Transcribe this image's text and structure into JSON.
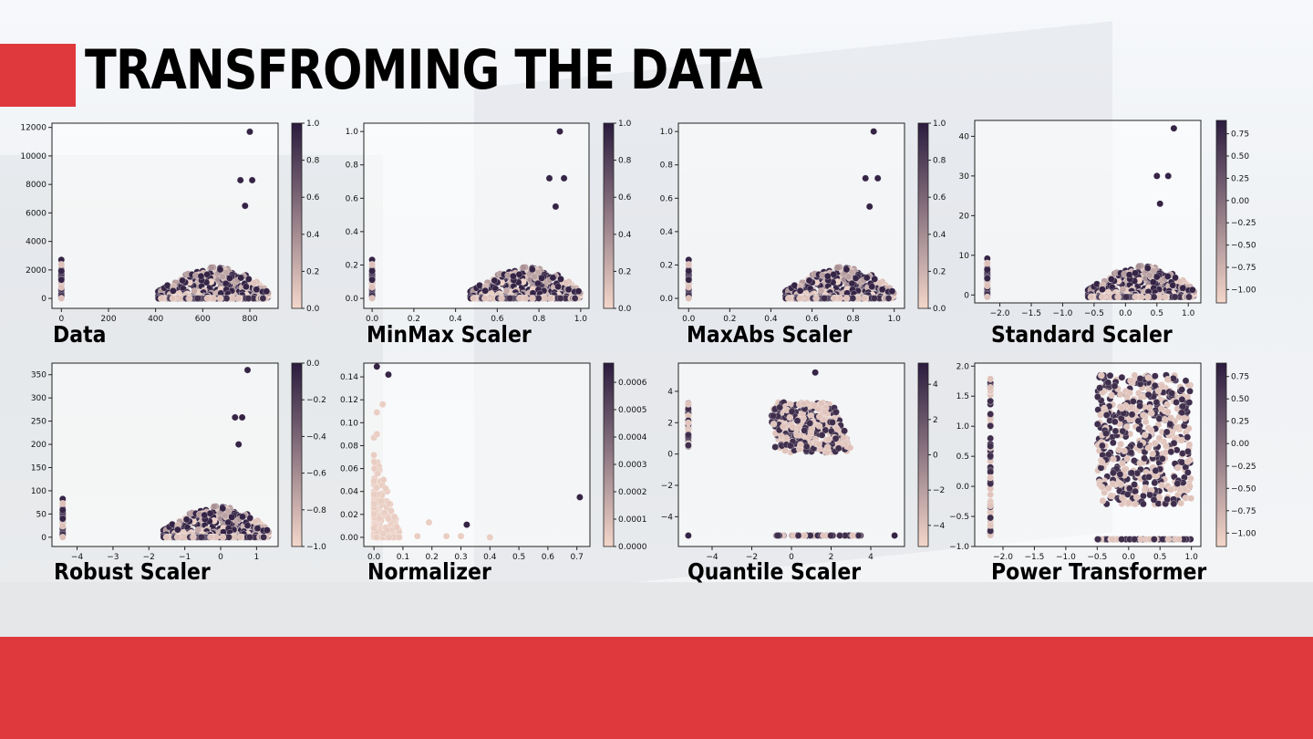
{
  "slide": {
    "title": "TRANSFROMING THE DATA"
  },
  "colors": {
    "accent": "#df393d",
    "band": "#e6e7e9",
    "cmap_low": "#f4d7ca",
    "cmap_high": "#2b1b3e"
  },
  "chart_data": [
    {
      "type": "scatter",
      "label": "Data",
      "xlim": [
        -40,
        920
      ],
      "ylim": [
        -700,
        12300
      ],
      "xticks": [
        0,
        200,
        400,
        600,
        800
      ],
      "yticks": [
        0,
        2000,
        4000,
        6000,
        8000,
        10000,
        12000
      ],
      "xtick_labels": [
        "0",
        "200",
        "400",
        "600",
        "800"
      ],
      "ytick_labels": [
        "0",
        "2000",
        "4000",
        "6000",
        "8000",
        "10000",
        "12000"
      ],
      "colorbar": {
        "min": 0.0,
        "max": 1.0,
        "ticks": [
          0.0,
          0.2,
          0.4,
          0.6,
          0.8,
          1.0
        ],
        "labels": [
          "0.0",
          "0.2",
          "0.4",
          "0.6",
          "0.8",
          "1.0"
        ]
      },
      "shape": "standard",
      "highlights": [
        [
          800,
          11700
        ],
        [
          760,
          8300
        ],
        [
          810,
          8300
        ],
        [
          780,
          6500
        ]
      ]
    },
    {
      "type": "scatter",
      "label": "MinMax Scaler",
      "xlim": [
        -0.04,
        1.04
      ],
      "ylim": [
        -0.06,
        1.05
      ],
      "xticks": [
        0,
        0.2,
        0.4,
        0.6,
        0.8,
        1.0
      ],
      "yticks": [
        0,
        0.2,
        0.4,
        0.6,
        0.8,
        1.0
      ],
      "xtick_labels": [
        "0.0",
        "0.2",
        "0.4",
        "0.6",
        "0.8",
        "1.0"
      ],
      "ytick_labels": [
        "0.0",
        "0.2",
        "0.4",
        "0.6",
        "0.8",
        "1.0"
      ],
      "colorbar": {
        "min": 0.0,
        "max": 1.0,
        "ticks": [
          0.0,
          0.2,
          0.4,
          0.6,
          0.8,
          1.0
        ],
        "labels": [
          "0.0",
          "0.2",
          "0.4",
          "0.6",
          "0.8",
          "1.0"
        ]
      },
      "shape": "standard",
      "highlights": [
        [
          0.9,
          1.0
        ],
        [
          0.85,
          0.72
        ],
        [
          0.92,
          0.72
        ],
        [
          0.88,
          0.55
        ]
      ]
    },
    {
      "type": "scatter",
      "label": "MaxAbs Scaler",
      "xlim": [
        -0.05,
        1.05
      ],
      "ylim": [
        -0.06,
        1.05
      ],
      "xticks": [
        0,
        0.2,
        0.4,
        0.6,
        0.8,
        1.0
      ],
      "yticks": [
        0,
        0.2,
        0.4,
        0.6,
        0.8,
        1.0
      ],
      "xtick_labels": [
        "0.0",
        "0.2",
        "0.4",
        "0.6",
        "0.8",
        "1.0"
      ],
      "ytick_labels": [
        "0.0",
        "0.2",
        "0.4",
        "0.6",
        "0.8",
        "1.0"
      ],
      "colorbar": {
        "min": 0.0,
        "max": 1.0,
        "ticks": [
          0.0,
          0.2,
          0.4,
          0.6,
          0.8,
          1.0
        ],
        "labels": [
          "0.0",
          "0.2",
          "0.4",
          "0.6",
          "0.8",
          "1.0"
        ]
      },
      "shape": "standard",
      "highlights": [
        [
          0.9,
          1.0
        ],
        [
          0.86,
          0.72
        ],
        [
          0.92,
          0.72
        ],
        [
          0.88,
          0.55
        ]
      ]
    },
    {
      "type": "scatter",
      "label": "Standard Scaler",
      "xlim": [
        -2.4,
        1.2
      ],
      "ylim": [
        -2,
        44
      ],
      "xticks": [
        -2.0,
        -1.5,
        -1.0,
        -0.5,
        0.0,
        0.5,
        1.0
      ],
      "yticks": [
        0,
        10,
        20,
        30,
        40
      ],
      "xtick_labels": [
        "−2.0",
        "−1.5",
        "−1.0",
        "−0.5",
        "0.0",
        "0.5",
        "1.0"
      ],
      "ytick_labels": [
        "0",
        "10",
        "20",
        "30",
        "40"
      ],
      "colorbar": {
        "min": -1.15,
        "max": 0.9,
        "ticks": [
          -1.0,
          -0.75,
          -0.5,
          -0.25,
          0.0,
          0.25,
          0.5,
          0.75
        ],
        "labels": [
          "−1.00",
          "−0.75",
          "−0.50",
          "−0.25",
          "0.00",
          "0.25",
          "0.50",
          "0.75"
        ]
      },
      "shape": "standard",
      "highlights": [
        [
          0.77,
          42
        ],
        [
          0.5,
          30
        ],
        [
          0.68,
          30
        ],
        [
          0.55,
          23
        ]
      ]
    },
    {
      "type": "scatter",
      "label": "Robust Scaler",
      "xlim": [
        -4.7,
        1.6
      ],
      "ylim": [
        -20,
        375
      ],
      "xticks": [
        -4,
        -3,
        -2,
        -1,
        0,
        1
      ],
      "yticks": [
        0,
        50,
        100,
        150,
        200,
        250,
        300,
        350
      ],
      "xtick_labels": [
        "−4",
        "−3",
        "−2",
        "−1",
        "0",
        "1"
      ],
      "ytick_labels": [
        "0",
        "50",
        "100",
        "150",
        "200",
        "250",
        "300",
        "350"
      ],
      "colorbar": {
        "min": -1.0,
        "max": 0.0,
        "ticks": [
          -1.0,
          -0.8,
          -0.6,
          -0.4,
          -0.2,
          0.0
        ],
        "labels": [
          "−1.0",
          "−0.8",
          "−0.6",
          "−0.4",
          "−0.2",
          "0.0"
        ]
      },
      "shape": "standard",
      "highlights": [
        [
          0.75,
          360
        ],
        [
          0.4,
          258
        ],
        [
          0.6,
          258
        ],
        [
          0.5,
          200
        ]
      ]
    },
    {
      "type": "scatter",
      "label": "Normalizer",
      "xlim": [
        -0.035,
        0.745
      ],
      "ylim": [
        -0.008,
        0.152
      ],
      "xticks": [
        0,
        0.1,
        0.2,
        0.3,
        0.4,
        0.5,
        0.6,
        0.7
      ],
      "yticks": [
        0,
        0.02,
        0.04,
        0.06,
        0.08,
        0.1,
        0.12,
        0.14
      ],
      "xtick_labels": [
        "0.0",
        "0.1",
        "0.2",
        "0.3",
        "0.4",
        "0.5",
        "0.6",
        "0.7"
      ],
      "ytick_labels": [
        "0.00",
        "0.02",
        "0.04",
        "0.06",
        "0.08",
        "0.10",
        "0.12",
        "0.14"
      ],
      "colorbar": {
        "min": 0.0,
        "max": 0.00067,
        "ticks": [
          0,
          0.0001,
          0.0002,
          0.0003,
          0.0004,
          0.0005,
          0.0006
        ],
        "labels": [
          "0.0000",
          "0.0001",
          "0.0002",
          "0.0003",
          "0.0004",
          "0.0005",
          "0.0006"
        ]
      },
      "shape": "normalizer",
      "highlights": [
        [
          0.32,
          0.011
        ],
        [
          0.71,
          0.035
        ],
        [
          0.01,
          0.149
        ],
        [
          0.05,
          0.142
        ]
      ]
    },
    {
      "type": "scatter",
      "label": "Quantile Scaler",
      "xlim": [
        -5.7,
        5.7
      ],
      "ylim": [
        -5.9,
        5.8
      ],
      "xticks": [
        -4,
        -2,
        0,
        2,
        4
      ],
      "yticks": [
        -4,
        -2,
        0,
        2,
        4
      ],
      "xtick_labels": [
        "−4",
        "−2",
        "0",
        "2",
        "4"
      ],
      "ytick_labels": [
        "−4",
        "−2",
        "0",
        "2",
        "4"
      ],
      "colorbar": {
        "min": -5.2,
        "max": 5.2,
        "ticks": [
          -4,
          -2,
          0,
          2,
          4
        ],
        "labels": [
          "−4",
          "−2",
          "0",
          "2",
          "4"
        ]
      },
      "shape": "quantile",
      "highlights": [
        [
          1.2,
          5.2
        ],
        [
          5.2,
          -5.2
        ],
        [
          -5.2,
          -5.2
        ]
      ]
    },
    {
      "type": "scatter",
      "label": "Power Transformer",
      "xlim": [
        -2.45,
        1.15
      ],
      "ylim": [
        -1.0,
        2.05
      ],
      "xticks": [
        -2.0,
        -1.5,
        -1.0,
        -0.5,
        0.0,
        0.5,
        1.0
      ],
      "yticks": [
        -1.0,
        -0.5,
        0.0,
        0.5,
        1.0,
        1.5,
        2.0
      ],
      "xtick_labels": [
        "−2.0",
        "−1.5",
        "−1.0",
        "−0.5",
        "0.0",
        "0.5",
        "1.0"
      ],
      "ytick_labels": [
        "−1.0",
        "−0.5",
        "0.0",
        "0.5",
        "1.0",
        "1.5",
        "2.0"
      ],
      "colorbar": {
        "min": -1.15,
        "max": 0.9,
        "ticks": [
          -1.0,
          -0.75,
          -0.5,
          -0.25,
          0.0,
          0.25,
          0.5,
          0.75
        ],
        "labels": [
          "−1.00",
          "−0.75",
          "−0.50",
          "−0.25",
          "0.00",
          "0.25",
          "0.50",
          "0.75"
        ]
      },
      "shape": "power",
      "highlights": []
    }
  ]
}
